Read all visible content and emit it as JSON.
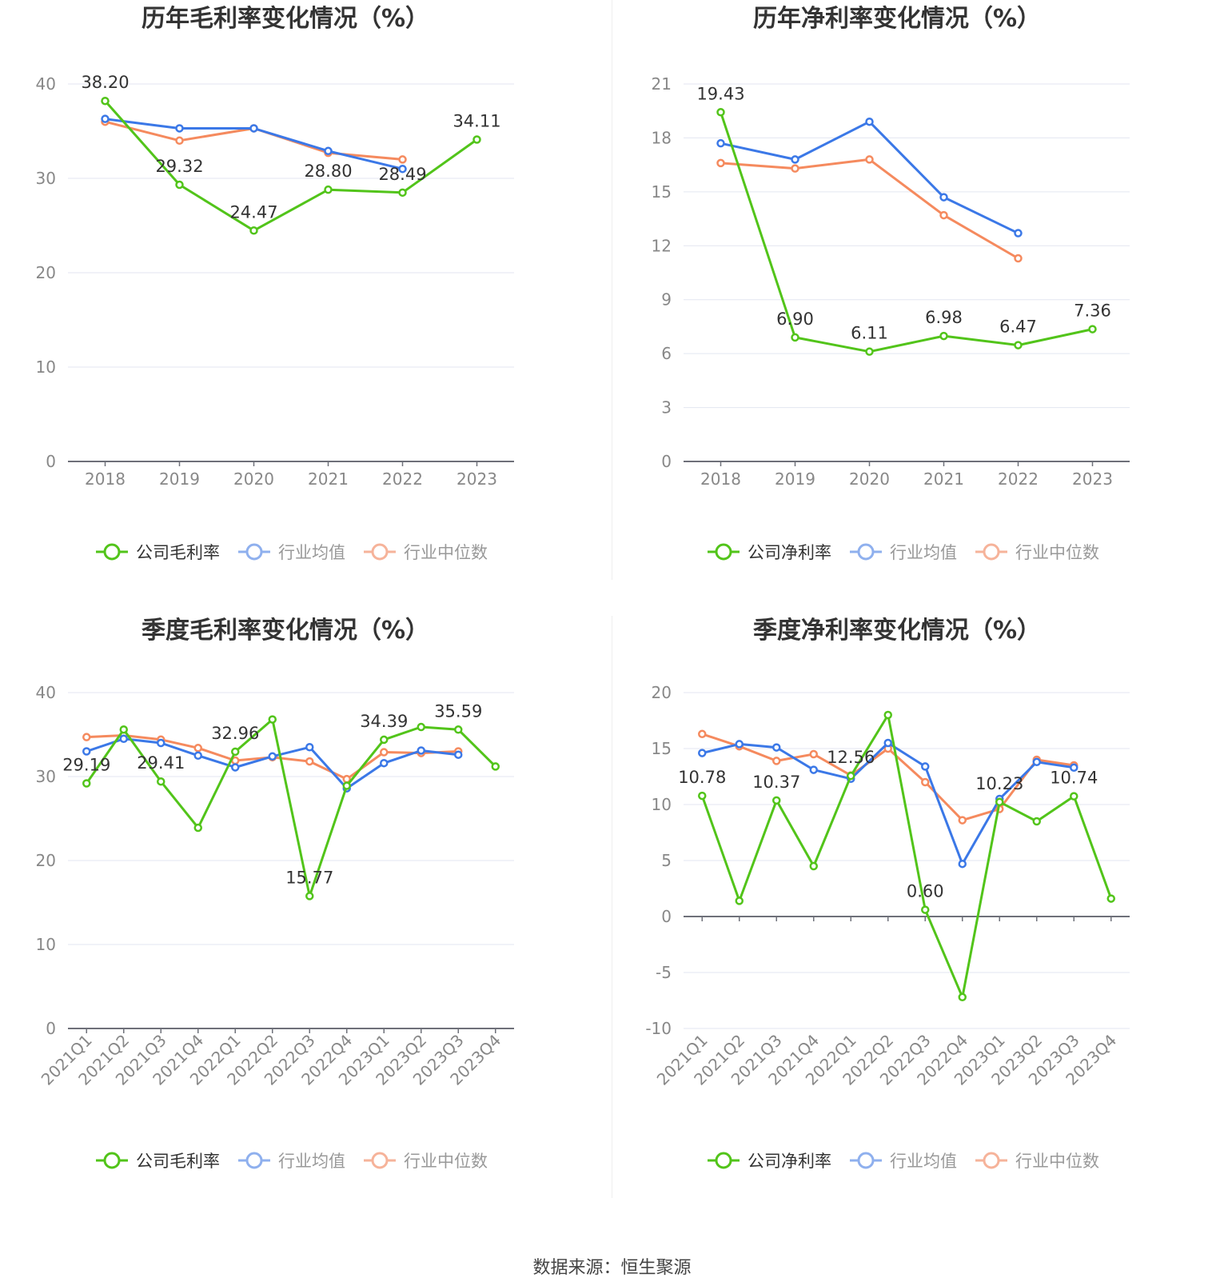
{
  "legend_colors": {
    "company": "#52c41a",
    "avg": "#3b78e7",
    "median": "#f58a5e"
  },
  "source_label": "数据来源：恒生聚源",
  "chart_data": [
    {
      "type": "line",
      "title": "历年毛利率变化情况（%）",
      "categories": [
        "2018",
        "2019",
        "2020",
        "2021",
        "2022",
        "2023"
      ],
      "ylim": [
        0,
        40
      ],
      "yticks": [
        0,
        10,
        20,
        30,
        40
      ],
      "grid": true,
      "legend_position": "bottom",
      "series": [
        {
          "name": "公司毛利率",
          "values": [
            38.2,
            29.32,
            24.47,
            28.8,
            28.49,
            34.11
          ]
        },
        {
          "name": "行业均值",
          "values": [
            36.3,
            35.3,
            35.3,
            32.9,
            31.0,
            null
          ]
        },
        {
          "name": "行业中位数",
          "values": [
            36.0,
            34.0,
            35.3,
            32.7,
            32.0,
            null
          ]
        }
      ],
      "data_labels": [
        "38.20",
        "29.32",
        "24.47",
        "28.80",
        "28.49",
        "34.11"
      ]
    },
    {
      "type": "line",
      "title": "历年净利率变化情况（%）",
      "categories": [
        "2018",
        "2019",
        "2020",
        "2021",
        "2022",
        "2023"
      ],
      "ylim": [
        0,
        21
      ],
      "yticks": [
        0,
        3,
        6,
        9,
        12,
        15,
        18,
        21
      ],
      "grid": true,
      "legend_position": "bottom",
      "series": [
        {
          "name": "公司净利率",
          "values": [
            19.43,
            6.9,
            6.11,
            6.98,
            6.47,
            7.36
          ]
        },
        {
          "name": "行业均值",
          "values": [
            17.7,
            16.8,
            18.9,
            14.7,
            12.7,
            null
          ]
        },
        {
          "name": "行业中位数",
          "values": [
            16.6,
            16.3,
            16.8,
            13.7,
            11.3,
            null
          ]
        }
      ],
      "data_labels": [
        "19.43",
        "6.90",
        "6.11",
        "6.98",
        "6.47",
        "7.36"
      ]
    },
    {
      "type": "line",
      "title": "季度毛利率变化情况（%）",
      "categories": [
        "2021Q1",
        "2021Q2",
        "2021Q3",
        "2021Q4",
        "2022Q1",
        "2022Q2",
        "2022Q3",
        "2022Q4",
        "2023Q1",
        "2023Q2",
        "2023Q3",
        "2023Q4"
      ],
      "ylim": [
        0,
        40
      ],
      "yticks": [
        0,
        10,
        20,
        30,
        40
      ],
      "grid": true,
      "legend_position": "bottom",
      "series": [
        {
          "name": "公司毛利率",
          "values": [
            29.19,
            35.6,
            29.41,
            23.9,
            32.96,
            36.8,
            15.77,
            28.9,
            34.39,
            35.9,
            35.59,
            31.2
          ]
        },
        {
          "name": "行业均值",
          "values": [
            33.0,
            34.5,
            34.0,
            32.5,
            31.1,
            32.4,
            33.5,
            28.6,
            31.6,
            33.1,
            32.6,
            null
          ]
        },
        {
          "name": "行业中位数",
          "values": [
            34.7,
            34.9,
            34.4,
            33.4,
            31.9,
            32.3,
            31.8,
            29.7,
            32.9,
            32.8,
            33.0,
            null
          ]
        }
      ],
      "data_labels": [
        "29.19",
        "",
        "29.41",
        "",
        "32.96",
        "",
        "15.77",
        "",
        "34.39",
        "",
        "35.59",
        ""
      ]
    },
    {
      "type": "line",
      "title": "季度净利率变化情况（%）",
      "categories": [
        "2021Q1",
        "2021Q2",
        "2021Q3",
        "2021Q4",
        "2022Q1",
        "2022Q2",
        "2022Q3",
        "2022Q4",
        "2023Q1",
        "2023Q2",
        "2023Q3",
        "2023Q4"
      ],
      "ylim": [
        -10,
        20
      ],
      "yticks": [
        -10,
        -5,
        0,
        5,
        10,
        15,
        20
      ],
      "grid": true,
      "legend_position": "bottom",
      "series": [
        {
          "name": "公司净利率",
          "values": [
            10.78,
            1.4,
            10.37,
            4.5,
            12.56,
            18.0,
            0.6,
            -7.2,
            10.23,
            8.5,
            10.74,
            1.6
          ]
        },
        {
          "name": "行业均值",
          "values": [
            14.6,
            15.4,
            15.1,
            13.1,
            12.3,
            15.5,
            13.4,
            4.7,
            10.5,
            13.8,
            13.3,
            null
          ]
        },
        {
          "name": "行业中位数",
          "values": [
            16.3,
            15.2,
            13.9,
            14.5,
            12.6,
            15.0,
            12.0,
            8.6,
            9.6,
            14.0,
            13.5,
            null
          ]
        }
      ],
      "data_labels": [
        "10.78",
        "",
        "10.37",
        "",
        "12.56",
        "",
        "0.60",
        "",
        "10.23",
        "",
        "10.74",
        ""
      ]
    }
  ]
}
